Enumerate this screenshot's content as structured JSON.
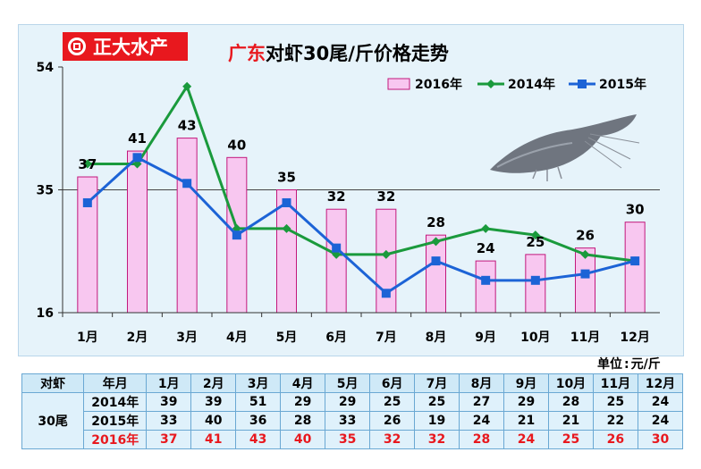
{
  "logo": {
    "text": "正大水产"
  },
  "title": {
    "highlight": "广东",
    "rest": "对虾30尾/斤价格走势"
  },
  "chart_data": {
    "type": "bar+line",
    "categories": [
      "1月",
      "2月",
      "3月",
      "4月",
      "5月",
      "6月",
      "7月",
      "8月",
      "9月",
      "10月",
      "11月",
      "12月"
    ],
    "bar_series": {
      "name": "2016年",
      "values": [
        37,
        41,
        43,
        40,
        35,
        32,
        32,
        28,
        24,
        25,
        26,
        30
      ],
      "color": "#f8c7f0",
      "border": "#c2187c"
    },
    "line_series": [
      {
        "name": "2014年",
        "values": [
          39,
          39,
          51,
          29,
          29,
          25,
          25,
          27,
          29,
          28,
          25,
          24
        ],
        "color": "#1a9a3c"
      },
      {
        "name": "2015年",
        "values": [
          33,
          40,
          36,
          28,
          33,
          26,
          19,
          24,
          21,
          21,
          22,
          24
        ],
        "color": "#1c63d6"
      }
    ],
    "ylim": [
      16,
      54
    ],
    "yticks": [
      "16",
      "35",
      "54"
    ],
    "legend_order": [
      "2016年",
      "2014年",
      "2015年"
    ],
    "legend_position": "top-right"
  },
  "unit": {
    "label": "单位",
    "sep": ":",
    "value": "元/斤"
  },
  "table": {
    "corner": "对虾",
    "year_header": "年月",
    "months": [
      "1月",
      "2月",
      "3月",
      "4月",
      "5月",
      "6月",
      "7月",
      "8月",
      "9月",
      "10月",
      "11月",
      "12月"
    ],
    "group_label": "30尾",
    "rows": [
      {
        "year": "2014年",
        "values": [
          "39",
          "39",
          "51",
          "29",
          "29",
          "25",
          "25",
          "27",
          "29",
          "28",
          "25",
          "24"
        ]
      },
      {
        "year": "2015年",
        "values": [
          "33",
          "40",
          "36",
          "28",
          "33",
          "26",
          "19",
          "24",
          "21",
          "21",
          "22",
          "24"
        ]
      },
      {
        "year": "2016年",
        "values": [
          "37",
          "41",
          "43",
          "40",
          "35",
          "32",
          "32",
          "28",
          "24",
          "25",
          "26",
          "30"
        ]
      }
    ]
  }
}
